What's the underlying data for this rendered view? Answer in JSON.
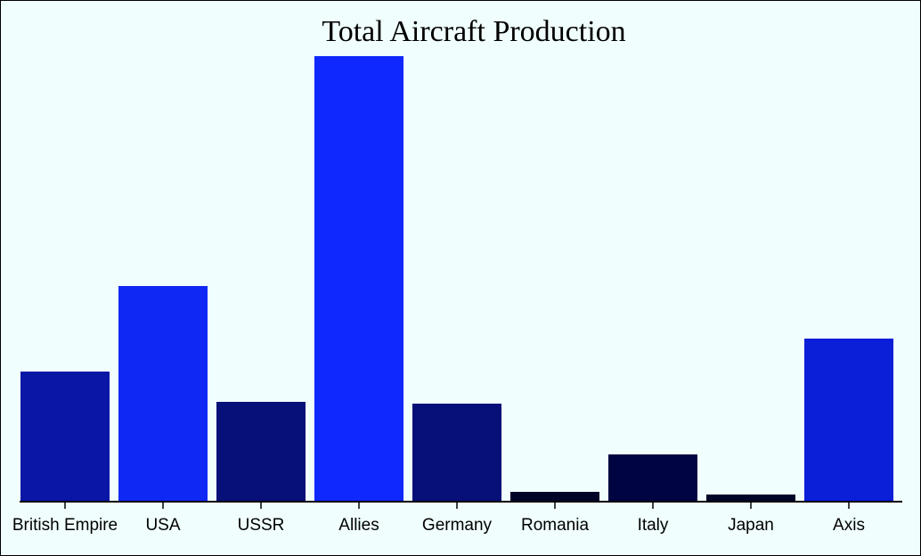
{
  "chart_data": {
    "type": "bar",
    "title": "Total Aircraft Production",
    "xlabel": "",
    "ylabel": "",
    "categories": [
      "British Empire",
      "USA",
      "USSR",
      "Allies",
      "Germany",
      "Romania",
      "Italy",
      "Japan",
      "Axis"
    ],
    "values": [
      146,
      242,
      112,
      500,
      110,
      11,
      53,
      8,
      183
    ],
    "colors": [
      "#0a16a6",
      "#0f28f4",
      "#061078",
      "#0f28fe",
      "#061078",
      "#000528",
      "#000440",
      "#000528",
      "#0b1fd8"
    ],
    "ylim": [
      0,
      500
    ],
    "grid": false,
    "legend": "none"
  }
}
